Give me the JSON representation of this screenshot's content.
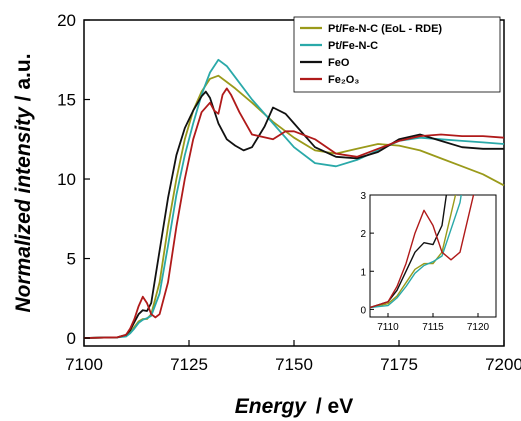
{
  "chart_data": [
    {
      "type": "line",
      "xlabel": "Energy",
      "xlabel_unit": "eV",
      "ylabel": "Normalized intensity",
      "ylabel_unit": "a.u.",
      "xlim": [
        7100,
        7200
      ],
      "ylim": [
        -0.5,
        20
      ],
      "xticks": [
        7100,
        7125,
        7150,
        7175,
        7200
      ],
      "yticks": [
        0,
        5,
        10,
        15,
        20
      ],
      "grid": false,
      "legend_position": "top-right",
      "series": [
        {
          "name": "Pt/Fe-N-C (EoL - RDE)",
          "color": "#9a9a1a",
          "x": [
            7100,
            7108,
            7110,
            7111,
            7112,
            7113,
            7114,
            7115,
            7116,
            7118,
            7120,
            7122,
            7124,
            7126,
            7128,
            7130,
            7132,
            7134,
            7136,
            7140,
            7145,
            7150,
            7155,
            7160,
            7165,
            7170,
            7175,
            7180,
            7185,
            7190,
            7195,
            7200
          ],
          "y": [
            0,
            0.05,
            0.15,
            0.35,
            0.7,
            1.05,
            1.2,
            1.2,
            1.5,
            3.5,
            7.0,
            10.0,
            12.5,
            14.3,
            15.5,
            16.3,
            16.5,
            16.1,
            15.7,
            14.8,
            13.6,
            12.6,
            11.8,
            11.6,
            11.9,
            12.2,
            12.1,
            11.8,
            11.3,
            10.8,
            10.3,
            9.6
          ]
        },
        {
          "name": "Pt/Fe-N-C",
          "color": "#2aa9a9",
          "x": [
            7100,
            7108,
            7110,
            7111,
            7112,
            7113,
            7114,
            7115,
            7116,
            7118,
            7120,
            7122,
            7124,
            7126,
            7128,
            7130,
            7132,
            7134,
            7136,
            7140,
            7145,
            7150,
            7155,
            7160,
            7165,
            7170,
            7175,
            7180,
            7185,
            7190,
            7195,
            7200
          ],
          "y": [
            0,
            0.05,
            0.1,
            0.3,
            0.6,
            0.95,
            1.15,
            1.25,
            1.4,
            2.8,
            5.8,
            9.0,
            11.5,
            13.5,
            15.3,
            16.7,
            17.5,
            17.1,
            16.4,
            15.0,
            13.5,
            12.0,
            11.0,
            10.8,
            11.2,
            11.8,
            12.4,
            12.6,
            12.5,
            12.4,
            12.3,
            12.2
          ]
        },
        {
          "name": "FeO",
          "color": "#111111",
          "x": [
            7100,
            7108,
            7110,
            7111,
            7112,
            7113,
            7114,
            7115,
            7116,
            7118,
            7120,
            7122,
            7124,
            7126,
            7128,
            7129,
            7130,
            7132,
            7134,
            7136,
            7138,
            7140,
            7143,
            7145,
            7148,
            7150,
            7155,
            7160,
            7165,
            7170,
            7175,
            7180,
            7185,
            7190,
            7195,
            7200
          ],
          "y": [
            0,
            0.05,
            0.2,
            0.5,
            1.0,
            1.5,
            1.75,
            1.7,
            2.2,
            5.5,
            8.8,
            11.5,
            13.2,
            14.3,
            15.2,
            15.5,
            15.1,
            13.5,
            12.5,
            12.1,
            11.8,
            12.0,
            13.3,
            14.5,
            14.1,
            13.5,
            12.0,
            11.4,
            11.3,
            11.7,
            12.5,
            12.8,
            12.4,
            12.0,
            11.9,
            11.9
          ]
        },
        {
          "name": "Fe₂O₃",
          "color": "#b01a1a",
          "x": [
            7100,
            7108,
            7110,
            7111,
            7112,
            7113,
            7114,
            7115,
            7116,
            7117,
            7118,
            7120,
            7122,
            7124,
            7126,
            7128,
            7130,
            7131,
            7132,
            7133,
            7134,
            7135,
            7137,
            7140,
            7145,
            7148,
            7150,
            7155,
            7160,
            7165,
            7170,
            7175,
            7180,
            7185,
            7190,
            7195,
            7200
          ],
          "y": [
            0,
            0.05,
            0.2,
            0.6,
            1.2,
            2.0,
            2.6,
            2.2,
            1.5,
            1.3,
            1.5,
            3.5,
            7.0,
            10.0,
            12.5,
            14.2,
            14.8,
            14.3,
            14.1,
            15.3,
            15.7,
            15.3,
            14.2,
            12.8,
            12.5,
            13.0,
            13.0,
            12.5,
            11.6,
            11.4,
            11.9,
            12.4,
            12.7,
            12.8,
            12.7,
            12.7,
            12.6
          ]
        }
      ]
    },
    {
      "type": "line",
      "role": "inset",
      "xlim": [
        7108,
        7122
      ],
      "ylim": [
        -0.2,
        3
      ],
      "xticks": [
        7110,
        7115,
        7120
      ],
      "yticks": [
        0,
        1,
        2,
        3
      ],
      "series_note": "same four series as main plot"
    }
  ]
}
